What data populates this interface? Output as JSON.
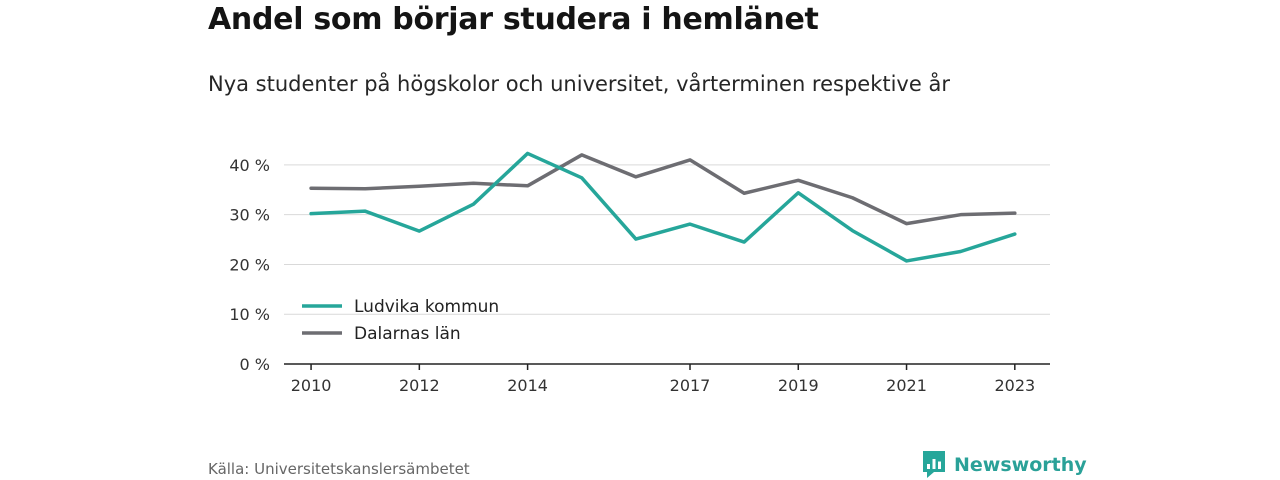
{
  "title": "Andel som börjar studera i hemlänet",
  "subtitle": "Nya studenter på högskolor och universitet, vårterminen respektive år",
  "source": "Källa: Universitetskanslersämbetet",
  "brand": {
    "name": "Newsworthy",
    "icon": "newsworthy-logo-icon",
    "color": "#26a69a"
  },
  "chart_data": {
    "type": "line",
    "title": "",
    "xlabel": "",
    "ylabel": "",
    "x": [
      2010,
      2011,
      2012,
      2013,
      2014,
      2015,
      2016,
      2017,
      2018,
      2019,
      2020,
      2021,
      2022,
      2023
    ],
    "xticks": [
      "2010",
      "2012",
      "2014",
      "2017",
      "2019",
      "2021",
      "2023"
    ],
    "xlim": [
      2009.5,
      2023.65
    ],
    "ylim": [
      0,
      45
    ],
    "yticks": [
      0,
      10,
      20,
      30,
      40
    ],
    "ytick_labels": [
      "0 %",
      "10 %",
      "20 %",
      "30 %",
      "40 %"
    ],
    "grid": true,
    "legend_position": "bottom-left",
    "series": [
      {
        "name": "Ludvika kommun",
        "color": "#26a69a",
        "values": [
          30.2,
          30.7,
          26.7,
          32.1,
          42.3,
          37.4,
          25.1,
          28.1,
          24.5,
          34.4,
          26.8,
          20.7,
          22.6,
          26.1
        ]
      },
      {
        "name": "Dalarnas län",
        "color": "#6d6d72",
        "values": [
          35.3,
          35.2,
          35.7,
          36.3,
          35.8,
          42.0,
          37.6,
          41.0,
          34.3,
          36.9,
          33.4,
          28.2,
          30.0,
          30.3
        ]
      }
    ]
  }
}
